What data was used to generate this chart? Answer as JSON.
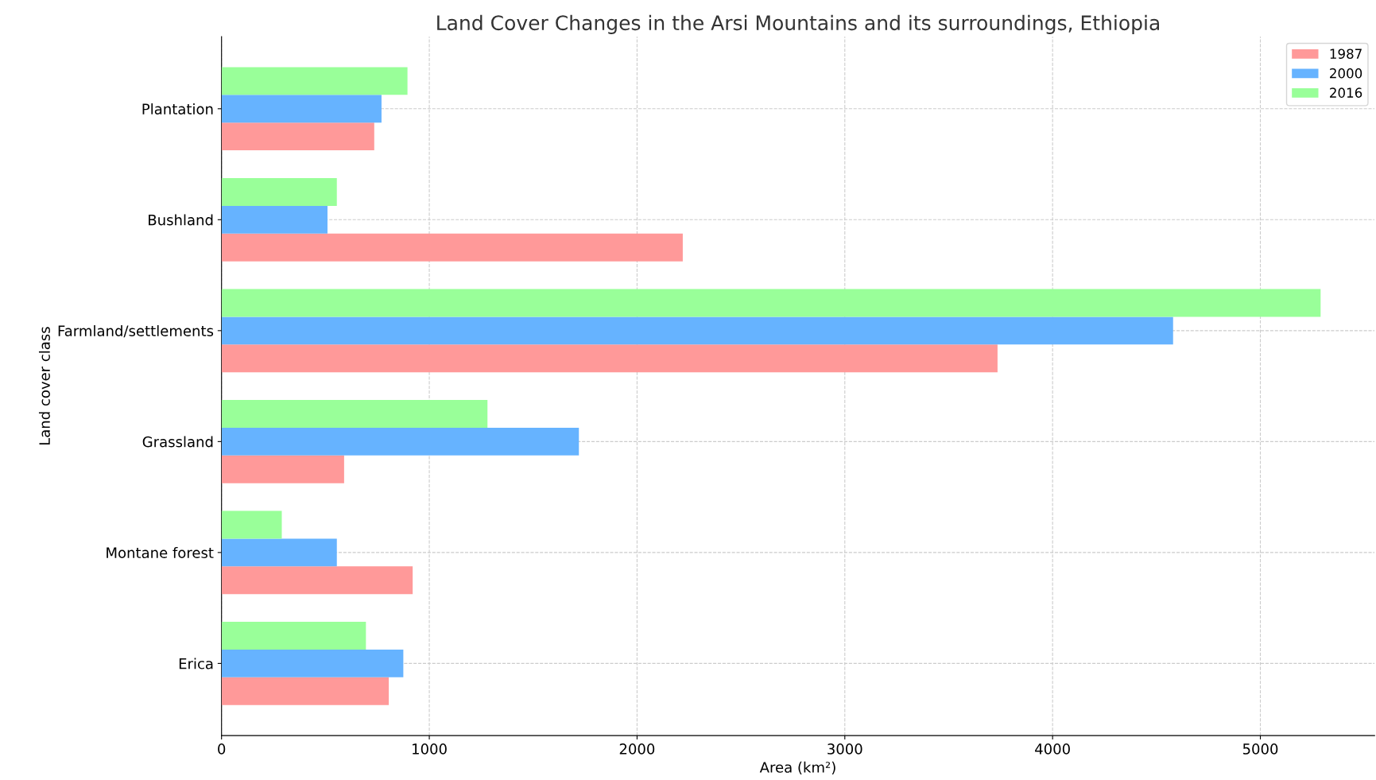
{
  "chart_data": {
    "type": "bar",
    "orientation": "horizontal",
    "title": "Land Cover Changes in the Arsi Mountains and its surroundings, Ethiopia",
    "xlabel": "Area (km²)",
    "ylabel": "Land cover class",
    "categories": [
      "Plantation",
      "Bushland",
      "Farmland/settlements",
      "Grassland",
      "Montane forest",
      "Erica"
    ],
    "series": [
      {
        "name": "1987",
        "color": "#ff9999",
        "values": [
          735,
          2220,
          3735,
          590,
          920,
          805
        ]
      },
      {
        "name": "2000",
        "color": "#66b3ff",
        "values": [
          770,
          510,
          4580,
          1720,
          555,
          875
        ]
      },
      {
        "name": "2016",
        "color": "#99ff99",
        "values": [
          895,
          555,
          5290,
          1280,
          290,
          695
        ]
      }
    ],
    "xlim": [
      0,
      5550
    ],
    "xticks": [
      0,
      1000,
      2000,
      3000,
      4000,
      5000
    ],
    "grid": true,
    "legend": "top right"
  }
}
